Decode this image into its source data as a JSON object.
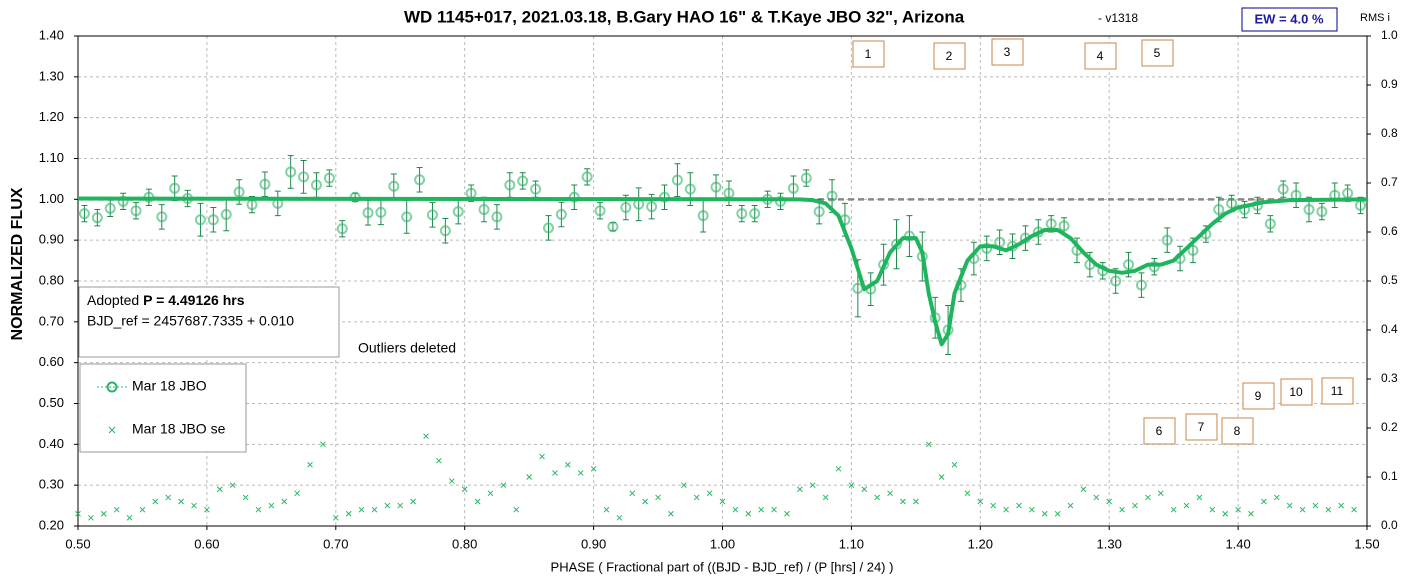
{
  "chart_data": {
    "type": "scatter",
    "title": "WD 1145+017, 2021.03.18, B.Gary HAO 16\" & T.Kaye JBO 32\", Arizona",
    "subtitle": "- v1318",
    "badge": "EW = 4.0 %",
    "y2_label": "RMS i",
    "y_label": "NORMALIZED FLUX",
    "x_label": "PHASE ( Fractional part of ((BJD - BJD_ref) / (P [hrs] / 24) )",
    "info_prefix": "Adopted",
    "info_bold": "P = 4.49126 hrs",
    "info_line2": "BJD_ref = 2457687.7335 + 0.010",
    "note": "Outliers deleted",
    "annotations": [
      "1",
      "2",
      "3",
      "4",
      "5",
      "6",
      "7",
      "8",
      "9",
      "10",
      "11"
    ],
    "xlim": [
      0.5,
      1.5
    ],
    "ylim": [
      0.2,
      1.4
    ],
    "y2lim": [
      0,
      1
    ],
    "grid": true,
    "xticks": [
      {
        "value": 0.5,
        "label": "0.50"
      },
      {
        "value": 0.6,
        "label": "0.60"
      },
      {
        "value": 0.7,
        "label": "0.70"
      },
      {
        "value": 0.8,
        "label": "0.80"
      },
      {
        "value": 0.9,
        "label": "0.90"
      },
      {
        "value": 1.0,
        "label": "1.00"
      },
      {
        "value": 1.1,
        "label": "1.10"
      },
      {
        "value": 1.2,
        "label": "1.20"
      },
      {
        "value": 1.3,
        "label": "1.30"
      },
      {
        "value": 1.4,
        "label": "1.40"
      },
      {
        "value": 1.5,
        "label": "1.50"
      }
    ],
    "yticks": [
      {
        "value": 0.2,
        "label": "0.20"
      },
      {
        "value": 0.3,
        "label": "0.30"
      },
      {
        "value": 0.4,
        "label": "0.40"
      },
      {
        "value": 0.5,
        "label": "0.50"
      },
      {
        "value": 0.6,
        "label": "0.60"
      },
      {
        "value": 0.7,
        "label": "0.70"
      },
      {
        "value": 0.8,
        "label": "0.80"
      },
      {
        "value": 0.9,
        "label": "0.90"
      },
      {
        "value": 1.0,
        "label": "1.00"
      },
      {
        "value": 1.1,
        "label": "1.10"
      },
      {
        "value": 1.2,
        "label": "1.20"
      },
      {
        "value": 1.3,
        "label": "1.30"
      },
      {
        "value": 1.4,
        "label": "1.40"
      }
    ],
    "y2ticks": [
      {
        "value": 0,
        "label": "0.0"
      },
      {
        "value": 0.1,
        "label": "0.1"
      },
      {
        "value": 0.2,
        "label": "0.2"
      },
      {
        "value": 0.3,
        "label": "0.3"
      },
      {
        "value": 0.4,
        "label": "0.4"
      },
      {
        "value": 0.5,
        "label": "0.5"
      },
      {
        "value": 0.6,
        "label": "0.6"
      },
      {
        "value": 0.7,
        "label": "0.7"
      },
      {
        "value": 0.8,
        "label": "0.8"
      },
      {
        "value": 0.9,
        "label": "0.9"
      },
      {
        "value": 1,
        "label": "1.0"
      }
    ],
    "series": [
      {
        "name": "Mar 18 JBO",
        "color": "#2bb565",
        "x": [
          0.505,
          0.515,
          0.525,
          0.535,
          0.545,
          0.555,
          0.565,
          0.575,
          0.585,
          0.595,
          0.605,
          0.615,
          0.625,
          0.635,
          0.645,
          0.655,
          0.665,
          0.675,
          0.685,
          0.695,
          0.705,
          0.715,
          0.725,
          0.735,
          0.745,
          0.755,
          0.765,
          0.775,
          0.785,
          0.795,
          0.805,
          0.815,
          0.825,
          0.835,
          0.845,
          0.855,
          0.865,
          0.875,
          0.885,
          0.895,
          0.905,
          0.915,
          0.925,
          0.935,
          0.945,
          0.955,
          0.965,
          0.975,
          0.985,
          0.995,
          1.005,
          1.015,
          1.025,
          1.035,
          1.045,
          1.055,
          1.065,
          1.075,
          1.085,
          1.095,
          1.105,
          1.115,
          1.125,
          1.135,
          1.145,
          1.155,
          1.165,
          1.175,
          1.185,
          1.195,
          1.205,
          1.215,
          1.225,
          1.235,
          1.245,
          1.255,
          1.265,
          1.275,
          1.285,
          1.295,
          1.305,
          1.315,
          1.325,
          1.335,
          1.345,
          1.355,
          1.365,
          1.375,
          1.385,
          1.395,
          1.405,
          1.415,
          1.425,
          1.435,
          1.445,
          1.455,
          1.465,
          1.475,
          1.485,
          1.495
        ],
        "values": [
          0.965,
          0.955,
          0.978,
          0.995,
          0.972,
          1.005,
          0.957,
          1.027,
          1.002,
          0.95,
          0.95,
          0.963,
          1.018,
          0.987,
          1.037,
          0.99,
          1.067,
          1.055,
          1.035,
          1.052,
          0.928,
          1.005,
          0.967,
          0.968,
          1.032,
          0.957,
          1.048,
          0.962,
          0.923,
          0.97,
          1.015,
          0.975,
          0.957,
          1.035,
          1.045,
          1.025,
          0.93,
          0.963,
          1.005,
          1.055,
          0.972,
          0.933,
          0.98,
          0.988,
          0.982,
          1.005,
          1.047,
          1.025,
          0.96,
          1.03,
          1.015,
          0.965,
          0.965,
          1.0,
          0.995,
          1.027,
          1.052,
          0.97,
          1.008,
          0.95,
          0.782,
          0.78,
          0.84,
          0.89,
          0.91,
          0.86,
          0.71,
          0.68,
          0.79,
          0.855,
          0.88,
          0.895,
          0.885,
          0.905,
          0.92,
          0.94,
          0.935,
          0.875,
          0.84,
          0.825,
          0.8,
          0.84,
          0.79,
          0.835,
          0.9,
          0.855,
          0.875,
          0.915,
          0.975,
          0.99,
          0.975,
          0.985,
          0.94,
          1.025,
          1.01,
          0.975,
          0.97,
          1.01,
          1.015,
          0.985
        ],
        "errors": [
          0.02,
          0.02,
          0.02,
          0.02,
          0.02,
          0.02,
          0.03,
          0.03,
          0.02,
          0.04,
          0.03,
          0.04,
          0.03,
          0.02,
          0.03,
          0.03,
          0.04,
          0.04,
          0.03,
          0.02,
          0.02,
          0.01,
          0.03,
          0.03,
          0.03,
          0.04,
          0.03,
          0.03,
          0.03,
          0.03,
          0.02,
          0.03,
          0.03,
          0.03,
          0.02,
          0.02,
          0.03,
          0.03,
          0.03,
          0.02,
          0.02,
          0.01,
          0.03,
          0.04,
          0.03,
          0.03,
          0.04,
          0.04,
          0.04,
          0.03,
          0.03,
          0.02,
          0.02,
          0.02,
          0.02,
          0.03,
          0.02,
          0.03,
          0.04,
          0.04,
          0.07,
          0.04,
          0.05,
          0.06,
          0.05,
          0.06,
          0.05,
          0.06,
          0.04,
          0.04,
          0.03,
          0.03,
          0.03,
          0.03,
          0.03,
          0.02,
          0.02,
          0.03,
          0.03,
          0.02,
          0.03,
          0.03,
          0.03,
          0.02,
          0.03,
          0.03,
          0.03,
          0.02,
          0.03,
          0.02,
          0.02,
          0.02,
          0.02,
          0.02,
          0.03,
          0.03,
          0.02,
          0.03,
          0.02,
          0.02
        ]
      },
      {
        "name": "Mar 18 JBO se",
        "color": "#2bb565",
        "marker": "x",
        "x": [
          0.5,
          0.51,
          0.52,
          0.53,
          0.54,
          0.55,
          0.56,
          0.57,
          0.58,
          0.59,
          0.6,
          0.61,
          0.62,
          0.63,
          0.64,
          0.65,
          0.66,
          0.67,
          0.68,
          0.69,
          0.7,
          0.71,
          0.72,
          0.73,
          0.74,
          0.75,
          0.76,
          0.77,
          0.78,
          0.79,
          0.8,
          0.81,
          0.82,
          0.83,
          0.84,
          0.85,
          0.86,
          0.87,
          0.88,
          0.89,
          0.9,
          0.91,
          0.92,
          0.93,
          0.94,
          0.95,
          0.96,
          0.97,
          0.98,
          0.99,
          1.0,
          1.01,
          1.02,
          1.03,
          1.04,
          1.05,
          1.06,
          1.07,
          1.08,
          1.09,
          1.1,
          1.11,
          1.12,
          1.13,
          1.14,
          1.15,
          1.16,
          1.17,
          1.18,
          1.19,
          1.2,
          1.21,
          1.22,
          1.23,
          1.24,
          1.25,
          1.26,
          1.27,
          1.28,
          1.29,
          1.3,
          1.31,
          1.32,
          1.33,
          1.34,
          1.35,
          1.36,
          1.37,
          1.38,
          1.39,
          1.4,
          1.41,
          1.42,
          1.43,
          1.44,
          1.45,
          1.46,
          1.47,
          1.48,
          1.49
        ],
        "values": [
          0.23,
          0.22,
          0.23,
          0.24,
          0.22,
          0.24,
          0.26,
          0.27,
          0.26,
          0.25,
          0.24,
          0.29,
          0.3,
          0.27,
          0.24,
          0.25,
          0.26,
          0.28,
          0.35,
          0.4,
          0.22,
          0.23,
          0.24,
          0.24,
          0.25,
          0.25,
          0.26,
          0.42,
          0.36,
          0.31,
          0.29,
          0.26,
          0.28,
          0.3,
          0.24,
          0.32,
          0.37,
          0.33,
          0.35,
          0.33,
          0.34,
          0.24,
          0.22,
          0.28,
          0.26,
          0.27,
          0.23,
          0.3,
          0.27,
          0.28,
          0.26,
          0.24,
          0.23,
          0.24,
          0.24,
          0.23,
          0.29,
          0.3,
          0.27,
          0.34,
          0.3,
          0.29,
          0.27,
          0.28,
          0.26,
          0.26,
          0.4,
          0.32,
          0.35,
          0.28,
          0.26,
          0.25,
          0.24,
          0.25,
          0.24,
          0.23,
          0.23,
          0.25,
          0.29,
          0.27,
          0.26,
          0.24,
          0.25,
          0.27,
          0.28,
          0.24,
          0.25,
          0.27,
          0.24,
          0.23,
          0.24,
          0.23,
          0.26,
          0.27,
          0.25,
          0.24,
          0.25,
          0.24,
          0.25,
          0.24
        ]
      }
    ],
    "fit": {
      "color": "#1fb55e",
      "x": [
        0.5,
        1.06,
        1.07,
        1.08,
        1.09,
        1.1,
        1.11,
        1.12,
        1.13,
        1.14,
        1.15,
        1.155,
        1.16,
        1.165,
        1.17,
        1.175,
        1.18,
        1.19,
        1.2,
        1.21,
        1.22,
        1.23,
        1.24,
        1.25,
        1.26,
        1.27,
        1.28,
        1.29,
        1.3,
        1.31,
        1.32,
        1.33,
        1.34,
        1.35,
        1.36,
        1.37,
        1.38,
        1.39,
        1.4,
        1.42,
        1.44,
        1.5
      ],
      "values": [
        1.002,
        1.0,
        0.998,
        0.99,
        0.96,
        0.88,
        0.78,
        0.8,
        0.87,
        0.905,
        0.905,
        0.87,
        0.77,
        0.7,
        0.645,
        0.67,
        0.77,
        0.85,
        0.885,
        0.885,
        0.875,
        0.89,
        0.91,
        0.925,
        0.925,
        0.905,
        0.87,
        0.84,
        0.825,
        0.82,
        0.825,
        0.84,
        0.84,
        0.85,
        0.88,
        0.91,
        0.94,
        0.965,
        0.98,
        0.993,
        0.998,
        1.0
      ]
    },
    "baseline": {
      "color": "#888888",
      "x": [
        0.5,
        1.5
      ],
      "values": [
        1.0,
        1.0
      ]
    }
  }
}
